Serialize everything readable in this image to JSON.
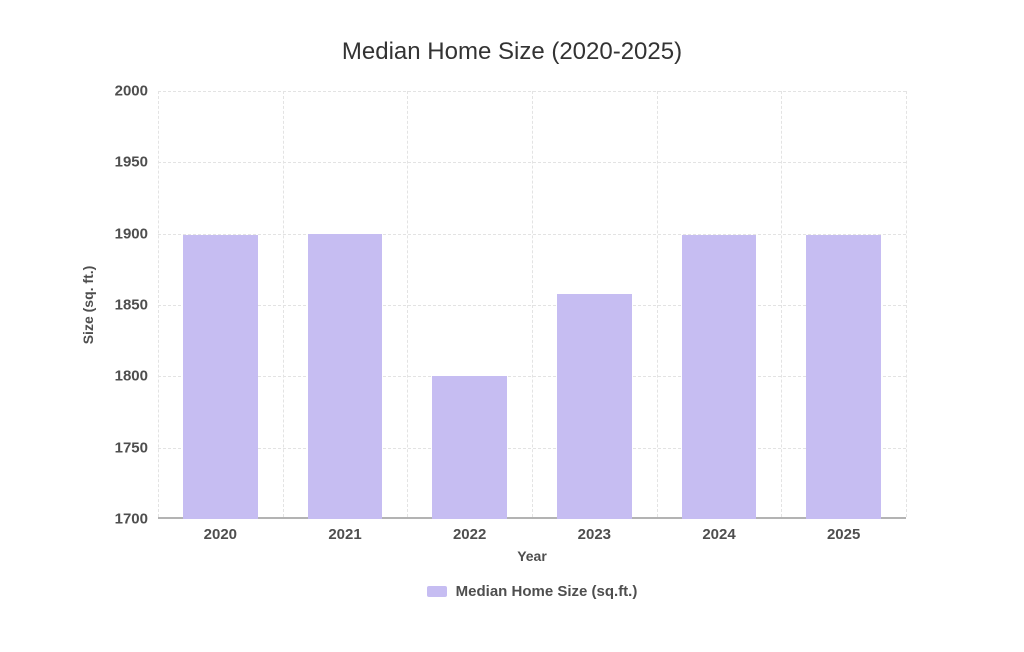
{
  "chart_data": {
    "type": "bar",
    "title": "Median Home Size (2020-2025)",
    "xlabel": "Year",
    "ylabel": "Size (sq. ft.)",
    "categories": [
      "2020",
      "2021",
      "2022",
      "2023",
      "2024",
      "2025"
    ],
    "series": [
      {
        "name": "Median Home Size (sq.ft.)",
        "values": [
          1899,
          1900,
          1800,
          1858,
          1899,
          1899
        ]
      }
    ],
    "ylim": [
      1700,
      2000
    ],
    "yticks": [
      1700,
      1750,
      1800,
      1850,
      1900,
      1950,
      2000
    ],
    "grid": true,
    "legend_position": "bottom",
    "colors": {
      "bar": "#c6bdf2",
      "background": "#ffffff"
    }
  }
}
